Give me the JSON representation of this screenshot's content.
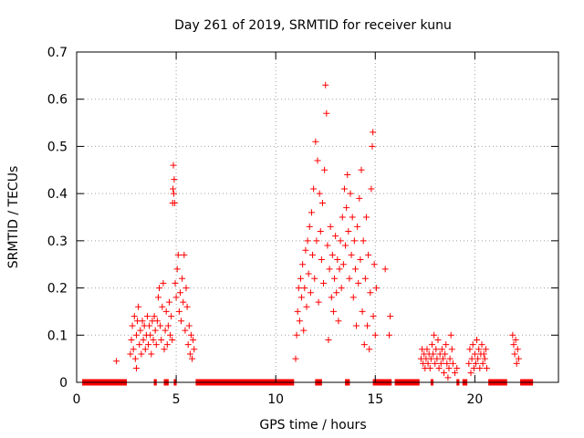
{
  "chart_data": {
    "type": "scatter",
    "title": "Day 261 of 2019, SRMTID for receiver kunu",
    "xlabel": "GPS time / hours",
    "ylabel": "SRMTID / TECUs",
    "xlim": [
      0,
      24.2
    ],
    "ylim": [
      0,
      0.7
    ],
    "xticks": [
      0,
      5,
      10,
      15,
      20
    ],
    "yticks": [
      0,
      0.1,
      0.2,
      0.3,
      0.4,
      0.5,
      0.6,
      0.7
    ],
    "xtick_labels": [
      "0",
      "5",
      "10",
      "15",
      "20"
    ],
    "ytick_labels": [
      "0",
      "0.1",
      "0.2",
      "0.3",
      "0.4",
      "0.5",
      "0.6",
      "0.7"
    ],
    "grid": true,
    "marker": "+",
    "color": "#ff0000",
    "series": [
      {
        "name": "SRMTID",
        "points": [
          [
            2.0,
            0.045
          ],
          [
            2.7,
            0.06
          ],
          [
            2.75,
            0.09
          ],
          [
            2.8,
            0.12
          ],
          [
            2.85,
            0.07
          ],
          [
            2.9,
            0.14
          ],
          [
            2.95,
            0.05
          ],
          [
            3.0,
            0.1
          ],
          [
            3.0,
            0.03
          ],
          [
            3.05,
            0.13
          ],
          [
            3.1,
            0.16
          ],
          [
            3.15,
            0.08
          ],
          [
            3.2,
            0.11
          ],
          [
            3.25,
            0.06
          ],
          [
            3.3,
            0.13
          ],
          [
            3.35,
            0.09
          ],
          [
            3.4,
            0.12
          ],
          [
            3.45,
            0.07
          ],
          [
            3.5,
            0.1
          ],
          [
            3.55,
            0.14
          ],
          [
            3.6,
            0.08
          ],
          [
            3.65,
            0.12
          ],
          [
            3.7,
            0.1
          ],
          [
            3.75,
            0.06
          ],
          [
            3.8,
            0.13
          ],
          [
            3.85,
            0.09
          ],
          [
            3.9,
            0.14
          ],
          [
            3.95,
            0.11
          ],
          [
            4.0,
            0.08
          ],
          [
            4.05,
            0.13
          ],
          [
            4.1,
            0.18
          ],
          [
            4.15,
            0.2
          ],
          [
            4.2,
            0.12
          ],
          [
            4.25,
            0.09
          ],
          [
            4.3,
            0.16
          ],
          [
            4.35,
            0.21
          ],
          [
            4.4,
            0.07
          ],
          [
            4.45,
            0.11
          ],
          [
            4.5,
            0.15
          ],
          [
            4.55,
            0.08
          ],
          [
            4.6,
            0.12
          ],
          [
            4.65,
            0.17
          ],
          [
            4.7,
            0.1
          ],
          [
            4.75,
            0.14
          ],
          [
            4.8,
            0.09
          ],
          [
            4.82,
            0.38
          ],
          [
            4.84,
            0.41
          ],
          [
            4.86,
            0.46
          ],
          [
            4.88,
            0.4
          ],
          [
            4.9,
            0.43
          ],
          [
            4.92,
            0.38
          ],
          [
            4.95,
            0.21
          ],
          [
            5.0,
            0.18
          ],
          [
            5.05,
            0.24
          ],
          [
            5.1,
            0.27
          ],
          [
            5.15,
            0.15
          ],
          [
            5.2,
            0.19
          ],
          [
            5.25,
            0.13
          ],
          [
            5.3,
            0.22
          ],
          [
            5.35,
            0.17
          ],
          [
            5.4,
            0.27
          ],
          [
            5.45,
            0.11
          ],
          [
            5.5,
            0.2
          ],
          [
            5.55,
            0.16
          ],
          [
            5.6,
            0.08
          ],
          [
            5.65,
            0.12
          ],
          [
            5.7,
            0.06
          ],
          [
            5.75,
            0.1
          ],
          [
            5.8,
            0.05
          ],
          [
            5.85,
            0.09
          ],
          [
            5.9,
            0.07
          ],
          [
            11.0,
            0.05
          ],
          [
            11.05,
            0.1
          ],
          [
            11.1,
            0.15
          ],
          [
            11.15,
            0.2
          ],
          [
            11.2,
            0.13
          ],
          [
            11.25,
            0.22
          ],
          [
            11.3,
            0.18
          ],
          [
            11.35,
            0.25
          ],
          [
            11.4,
            0.11
          ],
          [
            11.45,
            0.2
          ],
          [
            11.5,
            0.28
          ],
          [
            11.55,
            0.16
          ],
          [
            11.6,
            0.3
          ],
          [
            11.65,
            0.23
          ],
          [
            11.7,
            0.33
          ],
          [
            11.75,
            0.19
          ],
          [
            11.8,
            0.36
          ],
          [
            11.85,
            0.27
          ],
          [
            11.9,
            0.41
          ],
          [
            11.95,
            0.22
          ],
          [
            12.0,
            0.51
          ],
          [
            12.05,
            0.3
          ],
          [
            12.1,
            0.47
          ],
          [
            12.15,
            0.17
          ],
          [
            12.2,
            0.4
          ],
          [
            12.25,
            0.32
          ],
          [
            12.3,
            0.26
          ],
          [
            12.35,
            0.38
          ],
          [
            12.4,
            0.21
          ],
          [
            12.45,
            0.45
          ],
          [
            12.5,
            0.63
          ],
          [
            12.55,
            0.57
          ],
          [
            12.6,
            0.29
          ],
          [
            12.65,
            0.09
          ],
          [
            12.7,
            0.24
          ],
          [
            12.75,
            0.33
          ],
          [
            12.8,
            0.18
          ],
          [
            12.85,
            0.27
          ],
          [
            12.9,
            0.15
          ],
          [
            12.95,
            0.22
          ],
          [
            13.0,
            0.31
          ],
          [
            13.05,
            0.19
          ],
          [
            13.1,
            0.26
          ],
          [
            13.15,
            0.13
          ],
          [
            13.2,
            0.24
          ],
          [
            13.25,
            0.3
          ],
          [
            13.3,
            0.2
          ],
          [
            13.35,
            0.35
          ],
          [
            13.4,
            0.25
          ],
          [
            13.45,
            0.41
          ],
          [
            13.5,
            0.29
          ],
          [
            13.55,
            0.37
          ],
          [
            13.6,
            0.44
          ],
          [
            13.65,
            0.32
          ],
          [
            13.7,
            0.22
          ],
          [
            13.75,
            0.4
          ],
          [
            13.8,
            0.27
          ],
          [
            13.85,
            0.35
          ],
          [
            13.9,
            0.18
          ],
          [
            13.95,
            0.3
          ],
          [
            14.0,
            0.24
          ],
          [
            14.05,
            0.12
          ],
          [
            14.1,
            0.33
          ],
          [
            14.15,
            0.21
          ],
          [
            14.2,
            0.39
          ],
          [
            14.25,
            0.26
          ],
          [
            14.3,
            0.45
          ],
          [
            14.35,
            0.15
          ],
          [
            14.4,
            0.3
          ],
          [
            14.45,
            0.08
          ],
          [
            14.5,
            0.22
          ],
          [
            14.55,
            0.35
          ],
          [
            14.6,
            0.12
          ],
          [
            14.65,
            0.27
          ],
          [
            14.7,
            0.07
          ],
          [
            14.75,
            0.19
          ],
          [
            14.8,
            0.41
          ],
          [
            14.85,
            0.5
          ],
          [
            14.88,
            0.53
          ],
          [
            14.9,
            0.14
          ],
          [
            14.95,
            0.25
          ],
          [
            15.0,
            0.1
          ],
          [
            15.05,
            0.2
          ],
          [
            15.5,
            0.24
          ],
          [
            15.7,
            0.1
          ],
          [
            15.75,
            0.14
          ],
          [
            17.3,
            0.05
          ],
          [
            17.35,
            0.07
          ],
          [
            17.4,
            0.04
          ],
          [
            17.45,
            0.06
          ],
          [
            17.5,
            0.03
          ],
          [
            17.55,
            0.05
          ],
          [
            17.6,
            0.07
          ],
          [
            17.65,
            0.04
          ],
          [
            17.7,
            0.06
          ],
          [
            17.75,
            0.03
          ],
          [
            17.8,
            0.05
          ],
          [
            17.85,
            0.08
          ],
          [
            17.9,
            0.06
          ],
          [
            17.95,
            0.1
          ],
          [
            18.0,
            0.04
          ],
          [
            18.05,
            0.07
          ],
          [
            18.1,
            0.05
          ],
          [
            18.15,
            0.09
          ],
          [
            18.2,
            0.03
          ],
          [
            18.25,
            0.06
          ],
          [
            18.3,
            0.04
          ],
          [
            18.35,
            0.07
          ],
          [
            18.4,
            0.05
          ],
          [
            18.45,
            0.02
          ],
          [
            18.5,
            0.06
          ],
          [
            18.55,
            0.08
          ],
          [
            18.6,
            0.04
          ],
          [
            18.65,
            0.01
          ],
          [
            18.7,
            0.03
          ],
          [
            18.75,
            0.05
          ],
          [
            18.8,
            0.1
          ],
          [
            18.85,
            0.07
          ],
          [
            18.9,
            0.04
          ],
          [
            19.0,
            0.02
          ],
          [
            19.1,
            0.03
          ],
          [
            19.7,
            0.04
          ],
          [
            19.75,
            0.07
          ],
          [
            19.8,
            0.02
          ],
          [
            19.85,
            0.05
          ],
          [
            19.9,
            0.08
          ],
          [
            19.95,
            0.03
          ],
          [
            20.0,
            0.06
          ],
          [
            20.05,
            0.04
          ],
          [
            20.1,
            0.09
          ],
          [
            20.15,
            0.05
          ],
          [
            20.2,
            0.07
          ],
          [
            20.25,
            0.03
          ],
          [
            20.3,
            0.06
          ],
          [
            20.35,
            0.08
          ],
          [
            20.4,
            0.04
          ],
          [
            20.45,
            0.06
          ],
          [
            20.5,
            0.05
          ],
          [
            20.55,
            0.07
          ],
          [
            20.6,
            0.03
          ],
          [
            21.9,
            0.1
          ],
          [
            21.95,
            0.08
          ],
          [
            22.0,
            0.06
          ],
          [
            22.05,
            0.09
          ],
          [
            22.1,
            0.04
          ],
          [
            22.15,
            0.07
          ],
          [
            22.2,
            0.05
          ]
        ]
      }
    ],
    "zero_segments": [
      [
        0.3,
        2.5
      ],
      [
        3.9,
        4.0
      ],
      [
        4.4,
        4.6
      ],
      [
        4.9,
        5.0
      ],
      [
        6.0,
        10.9
      ],
      [
        12.0,
        12.3
      ],
      [
        13.5,
        13.7
      ],
      [
        14.9,
        15.8
      ],
      [
        16.0,
        17.2
      ],
      [
        17.8,
        17.9
      ],
      [
        19.1,
        19.2
      ],
      [
        19.4,
        19.6
      ],
      [
        20.7,
        21.6
      ],
      [
        22.3,
        22.9
      ]
    ]
  }
}
